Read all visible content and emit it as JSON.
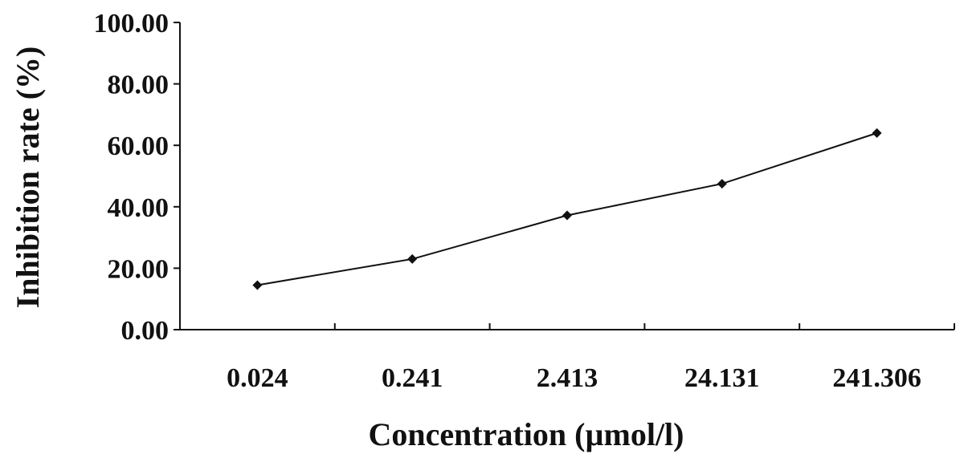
{
  "chart_data": {
    "type": "line",
    "title": "",
    "xlabel": "Concentration (µmol/l)",
    "ylabel": "Inhibition rate (%)",
    "categories": [
      "0.024",
      "0.241",
      "2.413",
      "24.131",
      "241.306"
    ],
    "series": [
      {
        "values": [
          14.5,
          23.0,
          37.2,
          47.5,
          64.0
        ]
      }
    ],
    "ylim": [
      0,
      100
    ],
    "yticks": [
      "0.00",
      "20.00",
      "40.00",
      "60.00",
      "80.00",
      "100.00"
    ],
    "marker": "diamond",
    "grid": false,
    "legend": "none",
    "colors": {
      "line": "#111111",
      "text": "#111111"
    }
  }
}
